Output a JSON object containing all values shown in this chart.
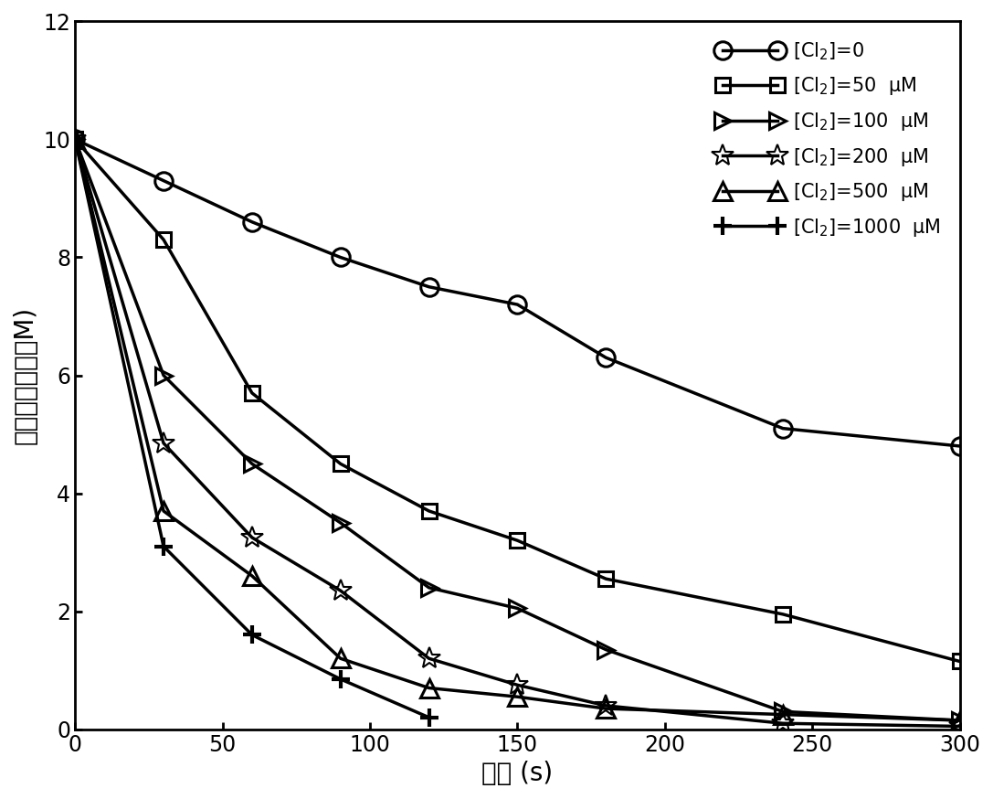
{
  "title": "",
  "xlabel": "时间 (s)",
  "ylabel": "碳帕醇的浓度（M)",
  "xlim": [
    0,
    300
  ],
  "ylim": [
    0,
    12
  ],
  "xticks": [
    0,
    50,
    100,
    150,
    200,
    250,
    300
  ],
  "yticks": [
    0,
    2,
    4,
    6,
    8,
    10,
    12
  ],
  "background_color": "#ffffff",
  "line_color": "#000000",
  "series": [
    {
      "label": "[Cl$_2$]=0",
      "marker": "o",
      "markersize": 14,
      "linewidth": 2.5,
      "fillstyle": "none",
      "x": [
        0,
        30,
        60,
        90,
        120,
        150,
        180,
        240,
        300
      ],
      "y": [
        10,
        9.3,
        8.6,
        8.0,
        7.5,
        7.2,
        6.3,
        5.1,
        4.8
      ]
    },
    {
      "label": "[Cl$_2$]=50  μM",
      "marker": "s",
      "markersize": 12,
      "linewidth": 2.5,
      "fillstyle": "none",
      "x": [
        0,
        30,
        60,
        90,
        120,
        150,
        180,
        240,
        300
      ],
      "y": [
        10,
        8.3,
        5.7,
        4.5,
        3.7,
        3.2,
        2.55,
        1.95,
        1.15
      ]
    },
    {
      "label": "[Cl$_2$]=100  μM",
      "marker": ">",
      "markersize": 13,
      "linewidth": 2.5,
      "fillstyle": "none",
      "x": [
        0,
        30,
        60,
        90,
        120,
        150,
        180,
        240,
        300
      ],
      "y": [
        10,
        6.0,
        4.5,
        3.5,
        2.4,
        2.05,
        1.35,
        0.3,
        0.15
      ]
    },
    {
      "label": "[Cl$_2$]=200  μM",
      "marker": "*",
      "markersize": 18,
      "linewidth": 2.5,
      "fillstyle": "none",
      "x": [
        0,
        30,
        60,
        90,
        120,
        150,
        180,
        240,
        300
      ],
      "y": [
        10,
        4.85,
        3.25,
        2.35,
        1.2,
        0.75,
        0.4,
        0.1,
        0.05
      ]
    },
    {
      "label": "[Cl$_2$]=500  μM",
      "marker": "^",
      "markersize": 14,
      "linewidth": 2.5,
      "fillstyle": "none",
      "x": [
        0,
        30,
        60,
        90,
        120,
        150,
        180,
        240,
        300
      ],
      "y": [
        10,
        3.7,
        2.6,
        1.2,
        0.7,
        0.55,
        0.35,
        0.25,
        0.15
      ]
    },
    {
      "label": "[Cl$_2$]=1000  μM",
      "marker": "P",
      "markersize": 13,
      "linewidth": 2.5,
      "fillstyle": "full",
      "x": [
        0,
        30,
        60,
        90,
        120
      ],
      "y": [
        10,
        3.1,
        1.6,
        0.85,
        0.2
      ]
    }
  ]
}
